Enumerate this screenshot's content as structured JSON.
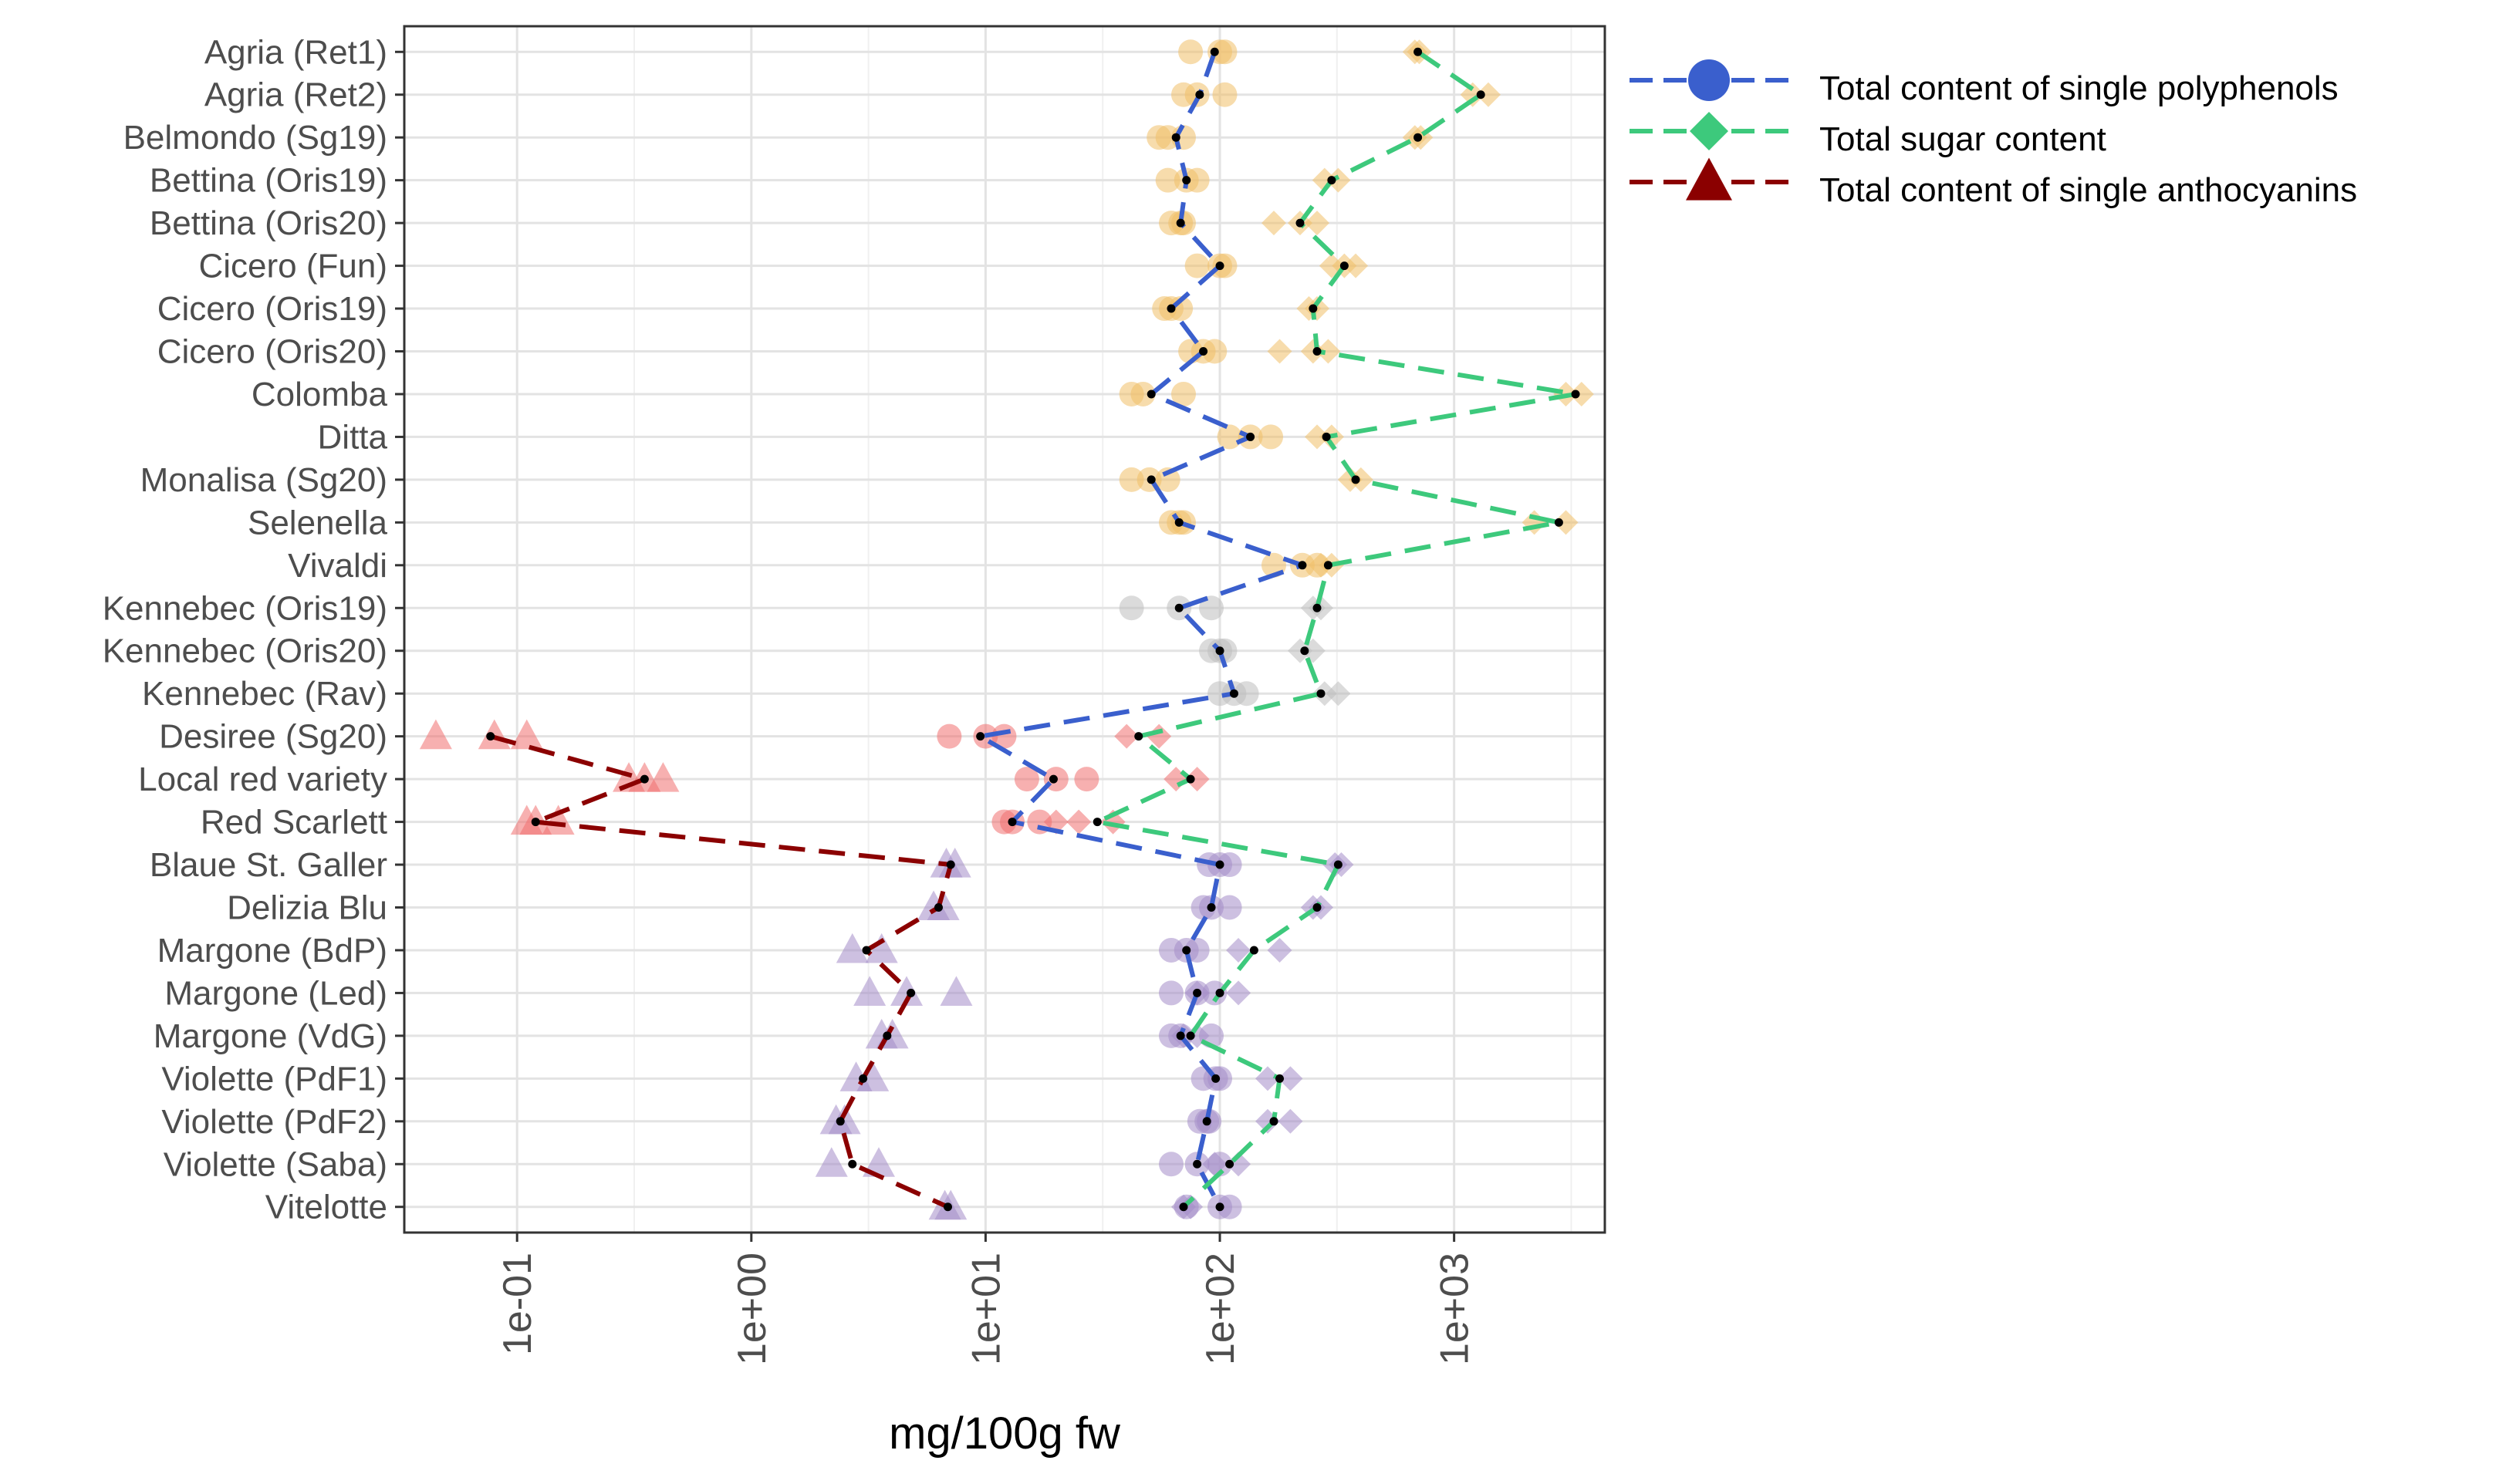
{
  "chart_data": {
    "type": "scatter",
    "xscale": "log10",
    "xlabel": "mg/100g fw",
    "ylabel": "",
    "xlim": [
      0.033,
      4400
    ],
    "xticks": [
      0.1,
      1,
      10,
      100,
      1000
    ],
    "xtick_labels": [
      "1e-01",
      "1e+00",
      "1e+01",
      "1e+02",
      "1e+03"
    ],
    "grid": true,
    "legend_position": "right",
    "colors": {
      "polyphenols": "#3a5fcd",
      "sugar": "#3dc97c",
      "anthocyanins": "#8b0000",
      "group_yellow": "#f0c068",
      "group_grey": "#bdbdbd",
      "group_red": "#f07070",
      "group_purple": "#a48cc8",
      "mean_dot": "#000000"
    },
    "legend": [
      {
        "key": "polyphenols",
        "label": "Total content of single polyphenols",
        "shape": "circle"
      },
      {
        "key": "sugar",
        "label": "Total sugar content",
        "shape": "diamond"
      },
      {
        "key": "anthocyanins",
        "label": "Total content of single anthocyanins",
        "shape": "triangle"
      }
    ],
    "categories": [
      "Agria (Ret1)",
      "Agria (Ret2)",
      "Belmondo (Sg19)",
      "Bettina (Oris19)",
      "Bettina (Oris20)",
      "Cicero (Fun)",
      "Cicero (Oris19)",
      "Cicero (Oris20)",
      "Colomba",
      "Ditta",
      "Monalisa (Sg20)",
      "Selenella",
      "Vivaldi",
      "Kennebec (Oris19)",
      "Kennebec (Oris20)",
      "Kennebec (Rav)",
      "Desiree (Sg20)",
      "Local red variety",
      "Red Scarlett",
      "Blaue St. Galler",
      "Delizia Blu",
      "Margone (BdP)",
      "Margone (Led)",
      "Margone (VdG)",
      "Violette (PdF1)",
      "Violette (PdF2)",
      "Violette (Saba)",
      "Vitelotte"
    ],
    "groups": [
      "yellow",
      "yellow",
      "yellow",
      "yellow",
      "yellow",
      "yellow",
      "yellow",
      "yellow",
      "yellow",
      "yellow",
      "yellow",
      "yellow",
      "yellow",
      "grey",
      "grey",
      "grey",
      "red",
      "red",
      "red",
      "purple",
      "purple",
      "purple",
      "purple",
      "purple",
      "purple",
      "purple",
      "purple",
      "purple"
    ],
    "series": [
      {
        "name": "Total content of single polyphenols",
        "key": "polyphenols",
        "shape": "circle",
        "means": [
          95,
          82,
          65,
          72,
          68,
          100,
          62,
          85,
          51,
          135,
          51,
          67,
          225,
          67,
          100,
          115,
          9.5,
          19.5,
          13,
          100,
          92,
          72,
          80,
          68,
          96,
          88,
          80,
          100
        ],
        "replicates": [
          [
            75,
            100,
            105
          ],
          [
            70,
            80,
            105
          ],
          [
            55,
            60,
            70
          ],
          [
            60,
            72,
            80
          ],
          [
            62,
            68,
            70
          ],
          [
            80,
            100,
            105
          ],
          [
            58,
            62,
            68
          ],
          [
            75,
            85,
            95
          ],
          [
            42,
            47,
            70
          ],
          [
            110,
            135,
            165
          ],
          [
            42,
            50,
            60
          ],
          [
            62,
            67,
            70
          ],
          [
            170,
            225,
            260
          ],
          [
            42,
            67,
            92
          ],
          [
            92,
            100,
            105
          ],
          [
            100,
            115,
            130
          ],
          [
            7,
            10,
            12
          ],
          [
            15,
            20,
            27
          ],
          [
            12,
            13,
            17
          ],
          [
            90,
            100,
            110
          ],
          [
            85,
            92,
            110
          ],
          [
            62,
            72,
            80
          ],
          [
            62,
            80,
            95
          ],
          [
            62,
            68,
            92
          ],
          [
            85,
            96,
            100
          ],
          [
            82,
            88,
            90
          ],
          [
            62,
            80,
            100
          ],
          [
            72,
            100,
            110
          ]
        ]
      },
      {
        "name": "Total sugar content",
        "key": "sugar",
        "shape": "diamond",
        "means": [
          700,
          1300,
          700,
          300,
          220,
          340,
          250,
          260,
          3300,
          285,
          380,
          2800,
          290,
          260,
          230,
          270,
          45,
          75,
          30,
          320,
          260,
          140,
          100,
          75,
          180,
          170,
          110,
          70
        ],
        "replicates": [
          [
            680,
            710
          ],
          [
            1200,
            1400
          ],
          [
            680,
            720
          ],
          [
            280,
            320
          ],
          [
            170,
            220,
            260
          ],
          [
            300,
            340,
            380
          ],
          [
            240,
            260
          ],
          [
            180,
            250,
            290
          ],
          [
            3000,
            3500
          ],
          [
            260,
            300
          ],
          [
            360,
            400
          ],
          [
            2200,
            3000
          ],
          [
            270,
            300
          ],
          [
            250,
            270
          ],
          [
            220,
            250
          ],
          [
            280,
            320
          ],
          [
            40,
            55
          ],
          [
            65,
            80
          ],
          [
            20,
            25,
            35
          ],
          [
            310,
            330
          ],
          [
            250,
            270
          ],
          [
            120,
            180
          ],
          [
            80,
            120
          ],
          [
            70,
            80
          ],
          [
            160,
            200
          ],
          [
            160,
            200
          ],
          [
            95,
            120
          ],
          [
            70,
            75
          ]
        ]
      },
      {
        "name": "Total content of single anthocyanins",
        "key": "anthocyanins",
        "shape": "triangle",
        "means": [
          null,
          null,
          null,
          null,
          null,
          null,
          null,
          null,
          null,
          null,
          null,
          null,
          null,
          null,
          null,
          null,
          0.077,
          0.35,
          0.12,
          7.1,
          6.3,
          3.1,
          4.8,
          3.8,
          3.0,
          2.4,
          2.7,
          6.9
        ],
        "replicates": [
          [],
          [],
          [],
          [],
          [],
          [],
          [],
          [],
          [],
          [],
          [],
          [],
          [],
          [],
          [],
          [],
          [
            0.045,
            0.08,
            0.11
          ],
          [
            0.3,
            0.35,
            0.42
          ],
          [
            0.11,
            0.12,
            0.15
          ],
          [
            6.8,
            7.4
          ],
          [
            6.0,
            6.6
          ],
          [
            2.7,
            3.6
          ],
          [
            3.2,
            4.6,
            7.5
          ],
          [
            3.6,
            4.0
          ],
          [
            2.8,
            3.3
          ],
          [
            2.3,
            2.5
          ],
          [
            2.2,
            3.5
          ],
          [
            6.7,
            7.1
          ]
        ]
      }
    ]
  }
}
